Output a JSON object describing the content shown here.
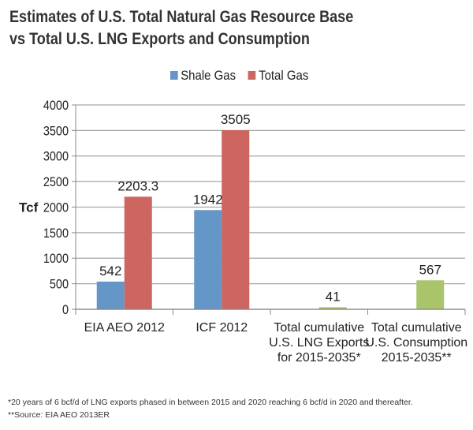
{
  "chart_data": {
    "type": "bar",
    "title": "Estimates of U.S. Total Natural Gas Resource Base vs Total U.S. LNG Exports and Consumption",
    "title_lines": [
      "Estimates of U.S. Total Natural Gas Resource Base",
      "vs Total U.S. LNG Exports and Consumption"
    ],
    "ylabel": "Tcf",
    "ylim": [
      0,
      4000
    ],
    "yticks": [
      0,
      500,
      1000,
      1500,
      2000,
      2500,
      3000,
      3500,
      4000
    ],
    "grid": true,
    "legend_position": "top",
    "categories": [
      [
        "EIA AEO 2012"
      ],
      [
        "ICF 2012"
      ],
      [
        "Total cumulative",
        "U.S. LNG Exports",
        "for 2015-2035*"
      ],
      [
        "Total cumulative",
        "U.S. Consumption",
        "2015-2035**"
      ]
    ],
    "series": [
      {
        "name": "Shale Gas",
        "color": "#6496c8",
        "values": [
          542,
          1942,
          null,
          null
        ],
        "labels": [
          "542",
          "1942",
          null,
          null
        ]
      },
      {
        "name": "Total Gas",
        "color": "#cd6560",
        "values": [
          2203.3,
          3505,
          41,
          567
        ],
        "labels": [
          "2203.3",
          "3505",
          "41",
          "567"
        ],
        "point_colors": [
          "#cd6560",
          "#cd6560",
          "#a9c46a",
          "#a9c46a"
        ]
      }
    ]
  },
  "footnotes": [
    "*20 years of 6 bcf/d of LNG exports phased in between 2015 and 2020 reaching 6 bcf/d in 2020 and thereafter.",
    "**Source: EIA AEO 2013ER"
  ]
}
